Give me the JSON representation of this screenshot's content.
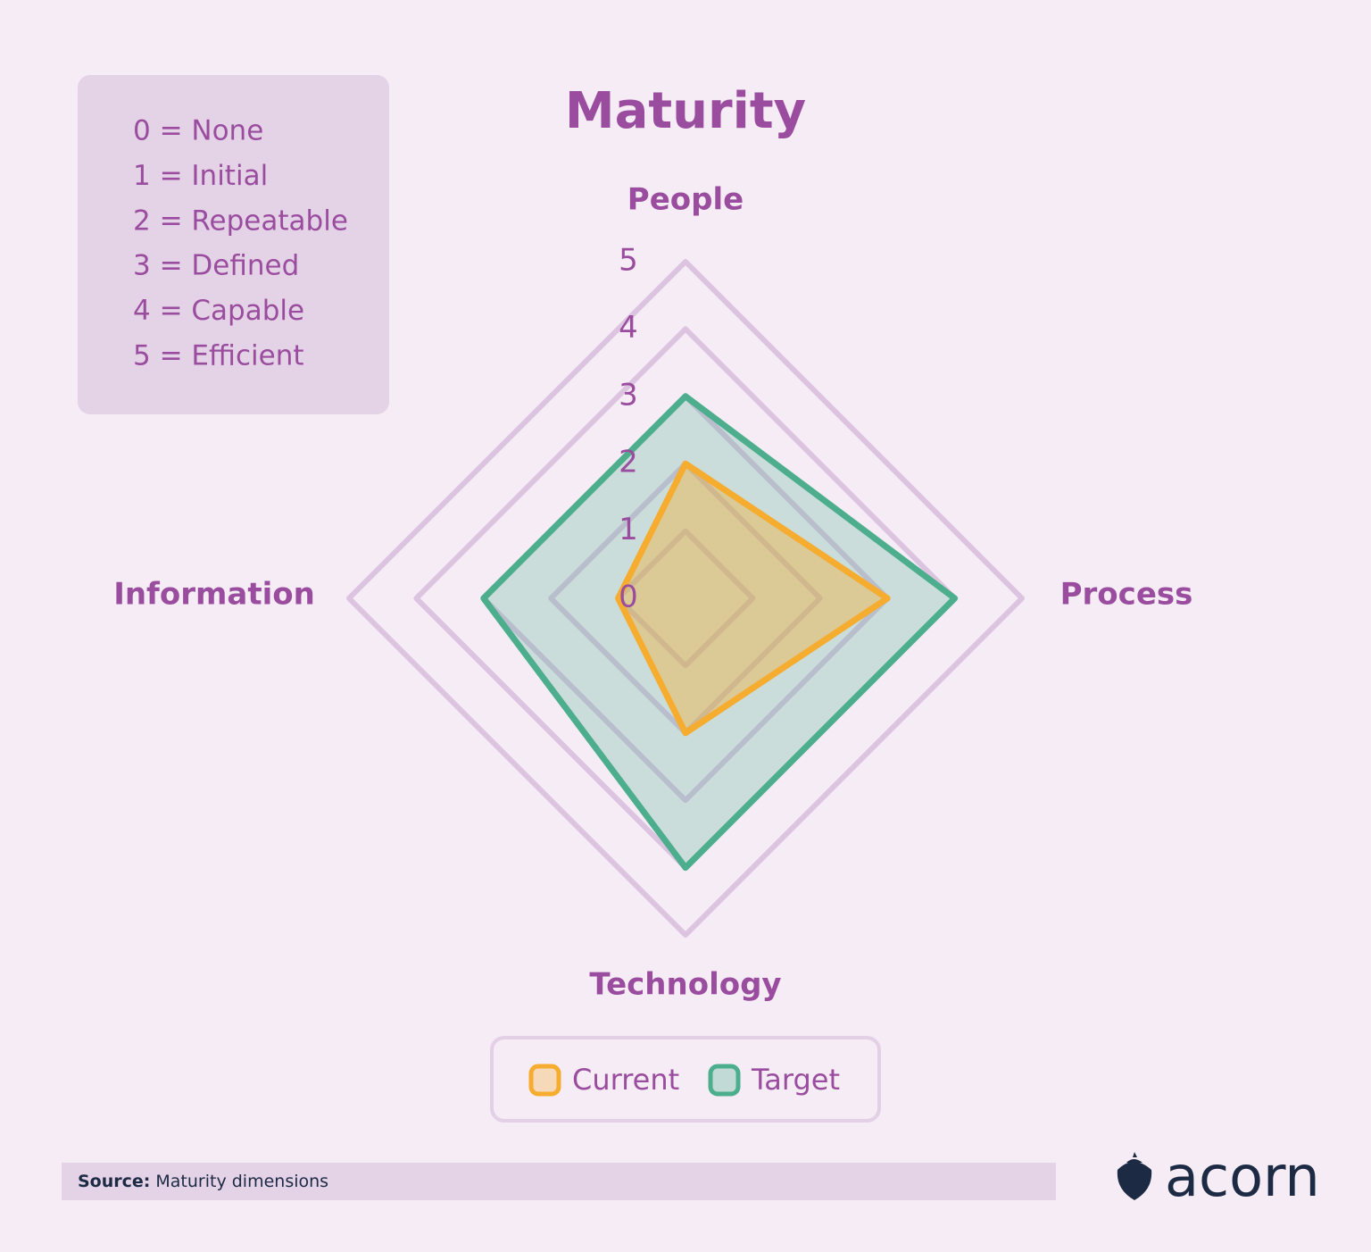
{
  "chart_data": {
    "type": "radar",
    "title": "Maturity",
    "categories": [
      "People",
      "Process",
      "Technology",
      "Information"
    ],
    "series": [
      {
        "name": "Current",
        "color": "#f5ac2f",
        "values": [
          2,
          3,
          2,
          1
        ]
      },
      {
        "name": "Target",
        "color": "#4dae8e",
        "values": [
          3,
          4,
          4,
          3
        ]
      }
    ],
    "rlim": [
      0,
      5
    ],
    "rticks": [
      0,
      1,
      2,
      3,
      4,
      5
    ],
    "grid": true,
    "legend": "bottom",
    "scale_labels": [
      "0 = None",
      "1 = Initial",
      "2 = Repeatable",
      "3 = Defined",
      "4 = Capable",
      "5 = Efficient"
    ]
  },
  "source": {
    "label": "Source:",
    "text": "Maturity dimensions"
  },
  "logo": "acorn"
}
